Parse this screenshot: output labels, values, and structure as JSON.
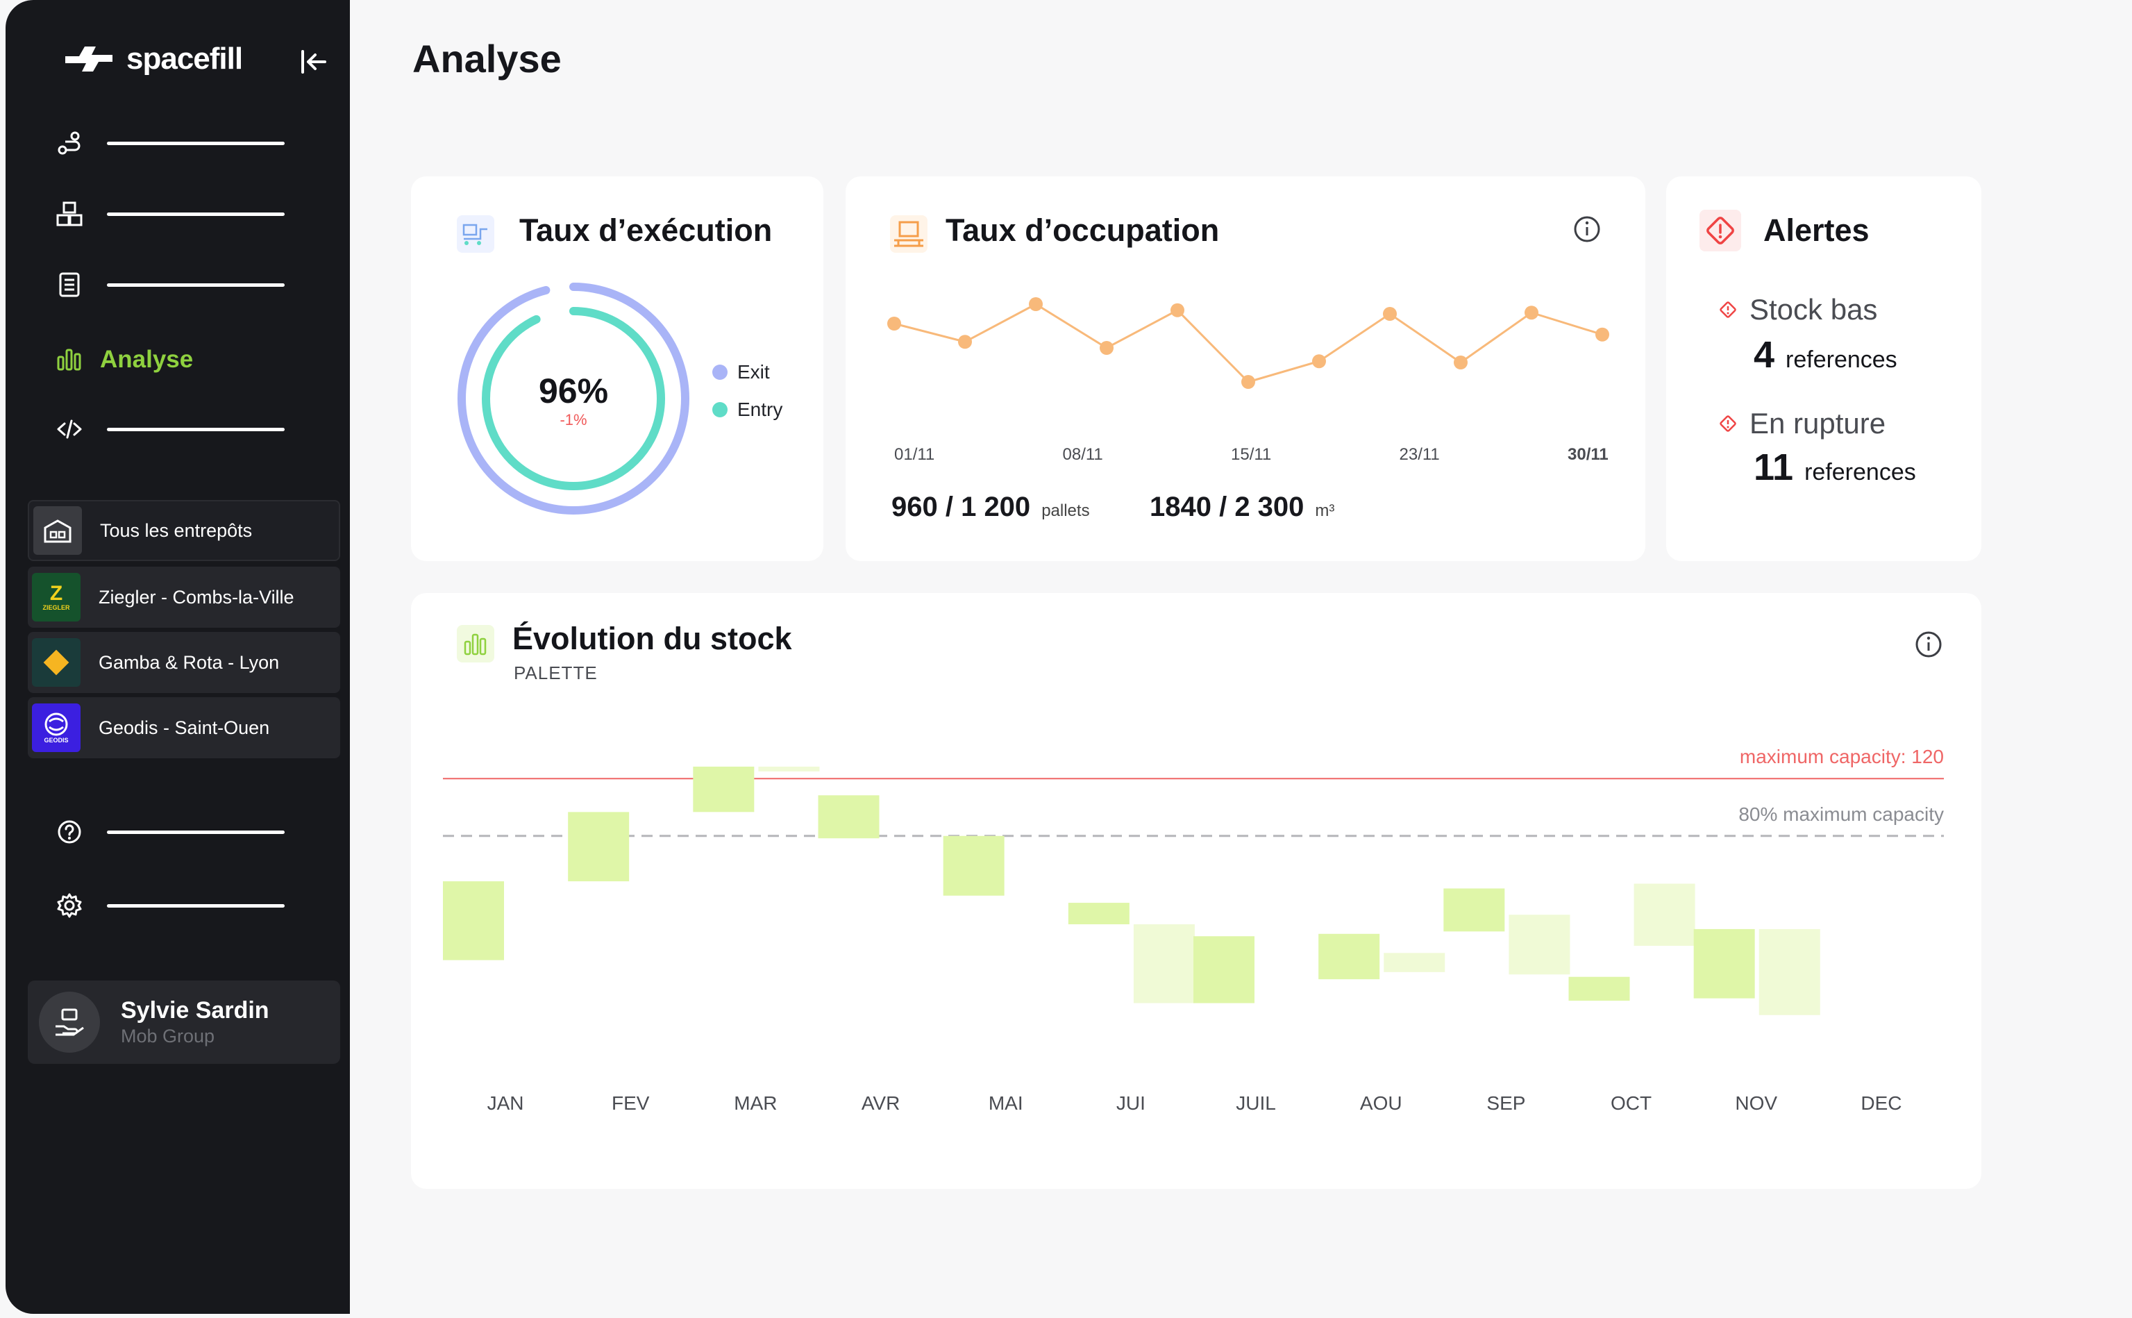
{
  "app": {
    "name": "spacefill"
  },
  "sidebar": {
    "active_item": "Analyse",
    "warehouses": [
      {
        "label": "Tous les entrepôts"
      },
      {
        "label": "Ziegler - Combs-la-Ville",
        "badge": "Z",
        "badge_caption": "ZIEGLER"
      },
      {
        "label": "Gamba & Rota - Lyon"
      },
      {
        "label": "Geodis - Saint-Ouen",
        "badge_caption": "GEODIS"
      }
    ],
    "user": {
      "name": "Sylvie Sardin",
      "org": "Mob Group"
    }
  },
  "page": {
    "title": "Analyse"
  },
  "execution": {
    "title": "Taux d’exécution",
    "percent": "96%",
    "delta": "-1%",
    "exit_fraction": 0.96,
    "entry_fraction": 0.93,
    "legend": [
      "Exit",
      "Entry"
    ],
    "colors": {
      "exit": "#a9b4f7",
      "entry": "#5fdcc7",
      "delta": "#f05a5a"
    }
  },
  "occupation": {
    "title": "Taux d’occupation",
    "pallets": {
      "value": "960 / 1 200",
      "unit": "pallets"
    },
    "volume": {
      "value": "1840 / 2 300",
      "unit": "m³"
    },
    "chart_data": {
      "type": "line",
      "x_tick_labels": [
        "01/11",
        "08/11",
        "15/11",
        "23/11",
        "30/11"
      ],
      "values": [
        56,
        41,
        72,
        36,
        67,
        8,
        25,
        64,
        24,
        65,
        47
      ],
      "ylim": [
        0,
        80
      ],
      "color": "#f8b97a"
    }
  },
  "alerts": {
    "title": "Alertes",
    "items": [
      {
        "label": "Stock bas",
        "count": "4",
        "unit": "references"
      },
      {
        "label": "En rupture",
        "count": "11",
        "unit": "references"
      }
    ],
    "color": "#ef4444"
  },
  "stock": {
    "title": "Évolution du stock",
    "subtitle": "PALETTE",
    "max_label": "maximum capacity: 120",
    "eighty_label": "80% maximum capacity",
    "chart_data": {
      "type": "bar",
      "categories": [
        "JAN",
        "FEV",
        "MAR",
        "AVR",
        "MAI",
        "JUI",
        "JUIL",
        "AOU",
        "SEP",
        "OCT",
        "NOV",
        "DEC"
      ],
      "ranges": [
        [
          [
            44,
            77
          ]
        ],
        [
          [
            77,
            106
          ]
        ],
        [
          [
            106,
            125
          ],
          [
            123,
            125
          ]
        ],
        [
          [
            95,
            113
          ]
        ],
        [
          [
            71,
            96
          ]
        ],
        [
          [
            59,
            68
          ],
          [
            26,
            59
          ]
        ],
        [
          [
            26,
            54
          ]
        ],
        [
          [
            36,
            55
          ],
          [
            39,
            47
          ]
        ],
        [
          [
            56,
            74
          ],
          [
            38,
            63
          ]
        ],
        [
          [
            27,
            37
          ],
          [
            50,
            76
          ]
        ],
        [
          [
            28,
            57
          ],
          [
            21,
            57
          ]
        ],
        [
          [
            0,
            0
          ]
        ]
      ],
      "ylim": [
        0,
        125
      ],
      "max_capacity": 120,
      "eighty_percent_capacity": 96,
      "colors": {
        "strong": "#dff6a8",
        "light": "#f0fad6",
        "max_line": "#ef6666",
        "eighty_line": "#b5b6ba"
      }
    }
  }
}
